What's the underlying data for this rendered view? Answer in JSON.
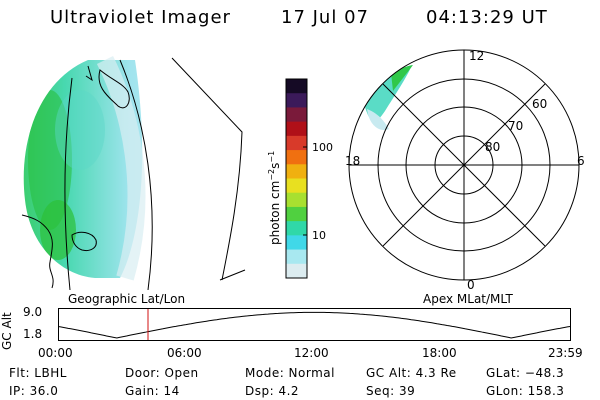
{
  "header": {
    "instrument": "Ultraviolet Imager",
    "date": "17 Jul 07",
    "time": "04:13:29 UT"
  },
  "colorbar": {
    "unit_label": "photon cm",
    "unit_exp": "−2",
    "unit_s": "s",
    "unit_s_exp": "−1",
    "ticks": [
      "100",
      "10"
    ],
    "colors": [
      "#150a25",
      "#3b1a5a",
      "#7a1a3a",
      "#b01018",
      "#d83a2a",
      "#f07010",
      "#f0b010",
      "#e8e020",
      "#a8e030",
      "#50d040",
      "#30d8a8",
      "#40d8e8",
      "#a8e8f0",
      "#dcecf0"
    ]
  },
  "polar": {
    "mlt_labels": {
      "top": "12",
      "left": "18",
      "right": "6",
      "bottom": "0"
    },
    "lat_labels": [
      "60",
      "70",
      "80"
    ]
  },
  "altplot": {
    "ylabel": "GC Alt",
    "ymax": "9.0",
    "ymin": "1.8",
    "left_label": "Geographic Lat/Lon",
    "right_label": "Apex MLat/MLT",
    "xticks": [
      "00:00",
      "06:00",
      "12:00",
      "18:00",
      "23:59"
    ],
    "marker_hour": 4.22
  },
  "info": {
    "flt": "Flt: LBHL",
    "ip": "IP: 36.0",
    "door": "Door: Open",
    "gain": "Gain: 14",
    "mode": "Mode: Normal",
    "dsp": "Dsp:     4.2",
    "gcalt": "GC Alt: 4.3 Re",
    "seq": "Seq: 39",
    "glat": "GLat: −48.3",
    "glon": "GLon: 158.3"
  }
}
